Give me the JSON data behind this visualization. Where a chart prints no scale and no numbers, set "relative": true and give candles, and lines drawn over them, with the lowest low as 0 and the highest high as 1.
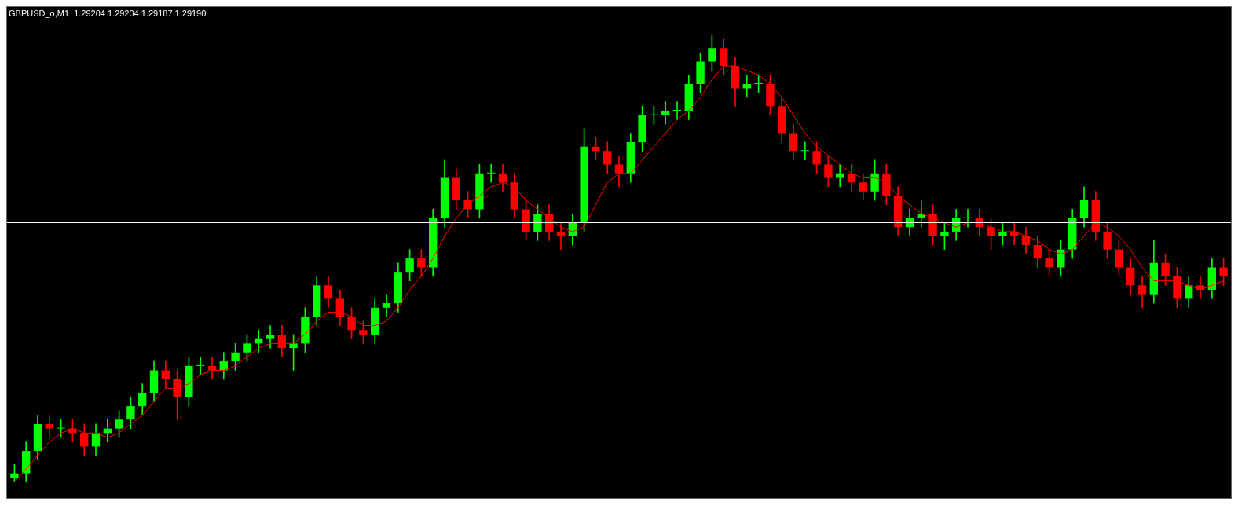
{
  "chart_data": {
    "type": "candlestick",
    "title": "GBPUSD_o,M1  1.29204 1.29204 1.29187 1.29190",
    "relative": true,
    "categories": [
      null,
      null,
      null,
      null,
      null,
      null,
      null,
      null,
      null,
      null,
      null,
      null,
      null,
      null,
      null,
      null,
      null,
      null,
      null,
      null,
      null,
      null,
      null,
      null,
      null,
      null,
      null,
      null,
      null,
      null,
      null,
      null,
      null,
      null,
      null,
      null,
      null,
      null,
      null,
      null,
      null,
      null,
      null,
      null,
      null,
      null,
      null,
      null,
      null,
      null,
      null,
      null,
      null,
      null,
      null,
      null,
      null,
      null,
      null,
      null,
      null,
      null,
      null,
      null,
      null,
      null,
      null,
      null,
      null,
      null,
      null,
      null,
      null,
      null,
      null,
      null,
      null,
      null,
      null,
      null,
      null,
      null,
      null,
      null,
      null,
      null,
      null,
      null,
      null,
      null,
      null,
      null,
      null,
      null,
      null,
      null,
      null,
      null,
      null,
      null,
      null,
      null,
      null,
      null,
      null
    ],
    "series": [
      {
        "ohlc": [
          [
            0.01,
            0.04,
            0.0,
            0.02
          ],
          [
            0.02,
            0.09,
            0.0,
            0.07
          ],
          [
            0.07,
            0.15,
            0.05,
            0.13
          ],
          [
            0.13,
            0.15,
            0.1,
            0.12
          ],
          [
            0.12,
            0.14,
            0.1,
            0.12
          ],
          [
            0.12,
            0.14,
            0.09,
            0.11
          ],
          [
            0.11,
            0.13,
            0.06,
            0.08
          ],
          [
            0.08,
            0.13,
            0.06,
            0.11
          ],
          [
            0.11,
            0.14,
            0.09,
            0.12
          ],
          [
            0.12,
            0.16,
            0.1,
            0.14
          ],
          [
            0.14,
            0.19,
            0.12,
            0.17
          ],
          [
            0.17,
            0.22,
            0.15,
            0.2
          ],
          [
            0.2,
            0.27,
            0.18,
            0.25
          ],
          [
            0.25,
            0.27,
            0.21,
            0.23
          ],
          [
            0.23,
            0.25,
            0.14,
            0.19
          ],
          [
            0.19,
            0.28,
            0.17,
            0.26
          ],
          [
            0.26,
            0.28,
            0.24,
            0.26
          ],
          [
            0.26,
            0.28,
            0.23,
            0.25
          ],
          [
            0.25,
            0.29,
            0.23,
            0.27
          ],
          [
            0.27,
            0.31,
            0.25,
            0.29
          ],
          [
            0.29,
            0.33,
            0.27,
            0.31
          ],
          [
            0.31,
            0.34,
            0.29,
            0.32
          ],
          [
            0.32,
            0.35,
            0.3,
            0.33
          ],
          [
            0.33,
            0.35,
            0.28,
            0.3
          ],
          [
            0.3,
            0.33,
            0.25,
            0.31
          ],
          [
            0.31,
            0.39,
            0.29,
            0.37
          ],
          [
            0.37,
            0.46,
            0.35,
            0.44
          ],
          [
            0.44,
            0.46,
            0.39,
            0.41
          ],
          [
            0.41,
            0.43,
            0.35,
            0.37
          ],
          [
            0.37,
            0.39,
            0.32,
            0.34
          ],
          [
            0.34,
            0.36,
            0.31,
            0.33
          ],
          [
            0.33,
            0.41,
            0.31,
            0.39
          ],
          [
            0.39,
            0.42,
            0.37,
            0.4
          ],
          [
            0.4,
            0.49,
            0.38,
            0.47
          ],
          [
            0.47,
            0.52,
            0.45,
            0.5
          ],
          [
            0.5,
            0.52,
            0.46,
            0.48
          ],
          [
            0.48,
            0.61,
            0.46,
            0.59
          ],
          [
            0.59,
            0.72,
            0.57,
            0.68
          ],
          [
            0.68,
            0.7,
            0.61,
            0.63
          ],
          [
            0.63,
            0.65,
            0.59,
            0.61
          ],
          [
            0.61,
            0.71,
            0.59,
            0.69
          ],
          [
            0.69,
            0.71,
            0.67,
            0.69
          ],
          [
            0.69,
            0.71,
            0.65,
            0.67
          ],
          [
            0.67,
            0.69,
            0.59,
            0.61
          ],
          [
            0.61,
            0.63,
            0.54,
            0.56
          ],
          [
            0.56,
            0.62,
            0.54,
            0.6
          ],
          [
            0.6,
            0.62,
            0.54,
            0.56
          ],
          [
            0.56,
            0.58,
            0.52,
            0.55
          ],
          [
            0.55,
            0.6,
            0.53,
            0.58
          ],
          [
            0.58,
            0.79,
            0.56,
            0.75
          ],
          [
            0.75,
            0.77,
            0.72,
            0.74
          ],
          [
            0.74,
            0.76,
            0.69,
            0.71
          ],
          [
            0.71,
            0.73,
            0.66,
            0.69
          ],
          [
            0.69,
            0.78,
            0.67,
            0.76
          ],
          [
            0.76,
            0.84,
            0.74,
            0.82
          ],
          [
            0.82,
            0.84,
            0.8,
            0.82
          ],
          [
            0.82,
            0.85,
            0.8,
            0.83
          ],
          [
            0.83,
            0.85,
            0.81,
            0.83
          ],
          [
            0.83,
            0.91,
            0.81,
            0.89
          ],
          [
            0.89,
            0.96,
            0.87,
            0.94
          ],
          [
            0.94,
            1.0,
            0.92,
            0.97
          ],
          [
            0.97,
            0.99,
            0.91,
            0.93
          ],
          [
            0.93,
            0.95,
            0.84,
            0.88
          ],
          [
            0.88,
            0.91,
            0.86,
            0.89
          ],
          [
            0.89,
            0.91,
            0.87,
            0.89
          ],
          [
            0.89,
            0.91,
            0.82,
            0.84
          ],
          [
            0.84,
            0.86,
            0.76,
            0.78
          ],
          [
            0.78,
            0.8,
            0.72,
            0.74
          ],
          [
            0.74,
            0.76,
            0.72,
            0.74
          ],
          [
            0.74,
            0.76,
            0.69,
            0.71
          ],
          [
            0.71,
            0.73,
            0.66,
            0.68
          ],
          [
            0.68,
            0.71,
            0.66,
            0.69
          ],
          [
            0.69,
            0.71,
            0.65,
            0.67
          ],
          [
            0.67,
            0.69,
            0.63,
            0.65
          ],
          [
            0.65,
            0.72,
            0.63,
            0.69
          ],
          [
            0.69,
            0.71,
            0.62,
            0.64
          ],
          [
            0.64,
            0.66,
            0.55,
            0.57
          ],
          [
            0.57,
            0.61,
            0.55,
            0.59
          ],
          [
            0.59,
            0.63,
            0.57,
            0.6
          ],
          [
            0.6,
            0.62,
            0.53,
            0.55
          ],
          [
            0.55,
            0.58,
            0.52,
            0.56
          ],
          [
            0.56,
            0.61,
            0.54,
            0.59
          ],
          [
            0.59,
            0.61,
            0.57,
            0.59
          ],
          [
            0.59,
            0.61,
            0.55,
            0.57
          ],
          [
            0.57,
            0.59,
            0.52,
            0.55
          ],
          [
            0.55,
            0.58,
            0.53,
            0.56
          ],
          [
            0.56,
            0.58,
            0.53,
            0.55
          ],
          [
            0.55,
            0.57,
            0.51,
            0.53
          ],
          [
            0.53,
            0.55,
            0.48,
            0.5
          ],
          [
            0.5,
            0.52,
            0.46,
            0.48
          ],
          [
            0.48,
            0.54,
            0.46,
            0.52
          ],
          [
            0.52,
            0.61,
            0.5,
            0.59
          ],
          [
            0.59,
            0.66,
            0.57,
            0.63
          ],
          [
            0.63,
            0.65,
            0.54,
            0.56
          ],
          [
            0.56,
            0.58,
            0.5,
            0.52
          ],
          [
            0.52,
            0.54,
            0.46,
            0.48
          ],
          [
            0.48,
            0.5,
            0.42,
            0.44
          ],
          [
            0.44,
            0.46,
            0.39,
            0.42
          ],
          [
            0.42,
            0.54,
            0.4,
            0.49
          ],
          [
            0.49,
            0.51,
            0.44,
            0.46
          ],
          [
            0.46,
            0.48,
            0.39,
            0.41
          ],
          [
            0.41,
            0.46,
            0.39,
            0.44
          ],
          [
            0.44,
            0.46,
            0.41,
            0.43
          ],
          [
            0.43,
            0.5,
            0.41,
            0.48
          ],
          [
            0.48,
            0.5,
            0.44,
            0.46
          ]
        ],
        "colors": [
          "#00ff00",
          "#00ff00",
          "#00ff00",
          "#ff0000",
          "#00ff00",
          "#ff0000",
          "#ff0000",
          "#00ff00",
          "#00ff00",
          "#00ff00",
          "#00ff00",
          "#00ff00",
          "#00ff00",
          "#ff0000",
          "#ff0000",
          "#00ff00",
          "#00ff00",
          "#ff0000",
          "#00ff00",
          "#00ff00",
          "#00ff00",
          "#00ff00",
          "#00ff00",
          "#ff0000",
          "#00ff00",
          "#00ff00",
          "#00ff00",
          "#ff0000",
          "#ff0000",
          "#ff0000",
          "#ff0000",
          "#00ff00",
          "#00ff00",
          "#00ff00",
          "#00ff00",
          "#ff0000",
          "#00ff00",
          "#00ff00",
          "#ff0000",
          "#ff0000",
          "#00ff00",
          "#00ff00",
          "#ff0000",
          "#ff0000",
          "#ff0000",
          "#00ff00",
          "#ff0000",
          "#ff0000",
          "#00ff00",
          "#00ff00",
          "#ff0000",
          "#ff0000",
          "#ff0000",
          "#00ff00",
          "#00ff00",
          "#00ff00",
          "#00ff00",
          "#00ff00",
          "#00ff00",
          "#00ff00",
          "#00ff00",
          "#ff0000",
          "#ff0000",
          "#00ff00",
          "#00ff00",
          "#ff0000",
          "#ff0000",
          "#ff0000",
          "#00ff00",
          "#ff0000",
          "#ff0000",
          "#00ff00",
          "#ff0000",
          "#ff0000",
          "#00ff00",
          "#ff0000",
          "#ff0000",
          "#00ff00",
          "#00ff00",
          "#ff0000",
          "#00ff00",
          "#00ff00",
          "#00ff00",
          "#ff0000",
          "#ff0000",
          "#00ff00",
          "#ff0000",
          "#ff0000",
          "#ff0000",
          "#ff0000",
          "#00ff00",
          "#00ff00",
          "#00ff00",
          "#ff0000",
          "#ff0000",
          "#ff0000",
          "#ff0000",
          "#ff0000",
          "#00ff00",
          "#ff0000",
          "#ff0000",
          "#00ff00",
          "#ff0000",
          "#00ff00",
          "#ff0000"
        ]
      },
      {
        "type": "line",
        "color": "#ff0000",
        "values": [
          0.0,
          0.03,
          0.06,
          0.09,
          0.11,
          0.12,
          0.11,
          0.11,
          0.1,
          0.11,
          0.13,
          0.15,
          0.18,
          0.21,
          0.21,
          0.22,
          0.24,
          0.25,
          0.25,
          0.26,
          0.28,
          0.3,
          0.31,
          0.31,
          0.31,
          0.33,
          0.36,
          0.38,
          0.38,
          0.37,
          0.35,
          0.35,
          0.36,
          0.39,
          0.43,
          0.46,
          0.5,
          0.55,
          0.59,
          0.62,
          0.64,
          0.66,
          0.67,
          0.66,
          0.63,
          0.61,
          0.59,
          0.57,
          0.56,
          0.57,
          0.62,
          0.67,
          0.69,
          0.69,
          0.72,
          0.75,
          0.78,
          0.81,
          0.83,
          0.86,
          0.9,
          0.93,
          0.93,
          0.92,
          0.91,
          0.89,
          0.86,
          0.82,
          0.78,
          0.75,
          0.73,
          0.71,
          0.69,
          0.68,
          0.68,
          0.67,
          0.64,
          0.62,
          0.6,
          0.59,
          0.58,
          0.57,
          0.58,
          0.58,
          0.57,
          0.56,
          0.56,
          0.55,
          0.54,
          0.52,
          0.51,
          0.52,
          0.55,
          0.58,
          0.57,
          0.55,
          0.52,
          0.48,
          0.45,
          0.45,
          0.45,
          0.44,
          0.43,
          0.44,
          0.45
        ]
      }
    ],
    "ref_lines": [
      {
        "axis": "y",
        "value": 0.58,
        "color": "#ffffff"
      }
    ]
  }
}
